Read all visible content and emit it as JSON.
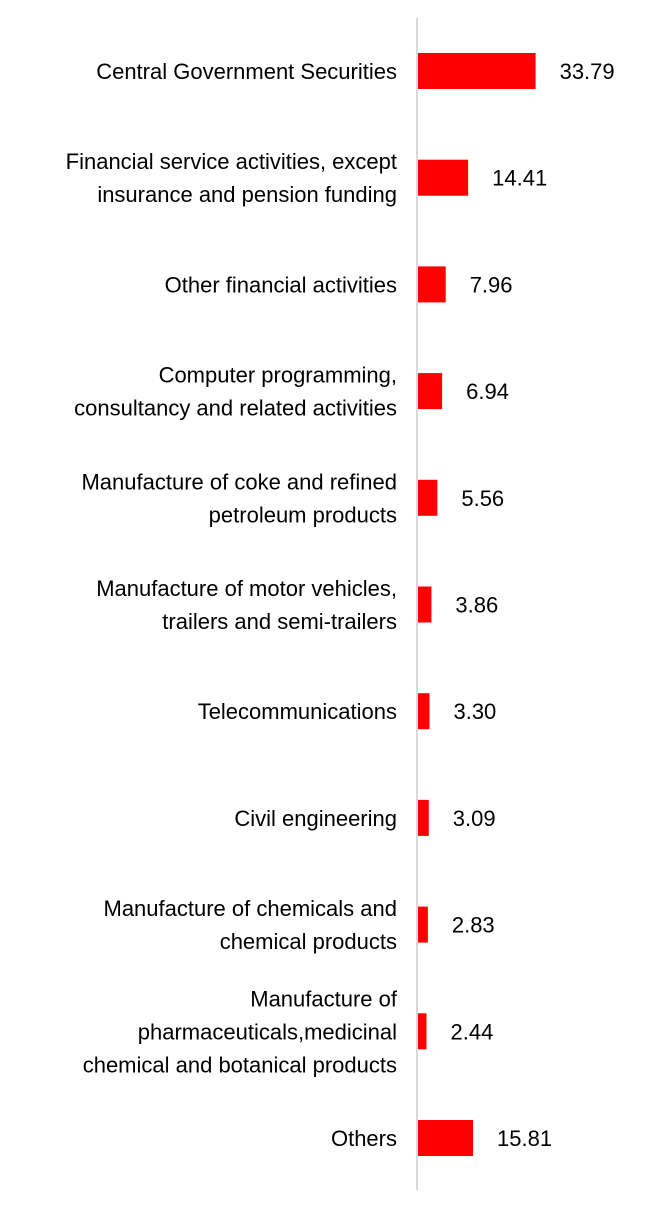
{
  "chart_data": {
    "type": "bar",
    "orientation": "horizontal",
    "title": "",
    "xlabel": "",
    "ylabel": "",
    "grid": false,
    "xlim": [
      0,
      40
    ],
    "categories": [
      [
        "Central Government Securities"
      ],
      [
        "Financial service activities, except",
        "insurance and pension funding"
      ],
      [
        "Other financial activities"
      ],
      [
        "Computer programming,",
        "consultancy and related activities"
      ],
      [
        "Manufacture of coke and refined",
        "petroleum products"
      ],
      [
        "Manufacture of motor vehicles,",
        "trailers and semi-trailers"
      ],
      [
        "Telecommunications"
      ],
      [
        "Civil engineering"
      ],
      [
        "Manufacture of chemicals and",
        "chemical products"
      ],
      [
        "Manufacture of",
        "pharmaceuticals,medicinal",
        "chemical and botanical products"
      ],
      [
        "Others"
      ]
    ],
    "values": [
      33.79,
      14.41,
      7.96,
      6.94,
      5.56,
      3.86,
      3.3,
      3.09,
      2.83,
      2.44,
      15.81
    ],
    "value_labels": [
      "33.79",
      "14.41",
      "7.96",
      "6.94",
      "5.56",
      "3.86",
      "3.30",
      "3.09",
      "2.83",
      "2.44",
      "15.81"
    ],
    "colors": {
      "bar": "#ff0000",
      "axis": "#d9d9d9",
      "text": "#000000"
    }
  }
}
